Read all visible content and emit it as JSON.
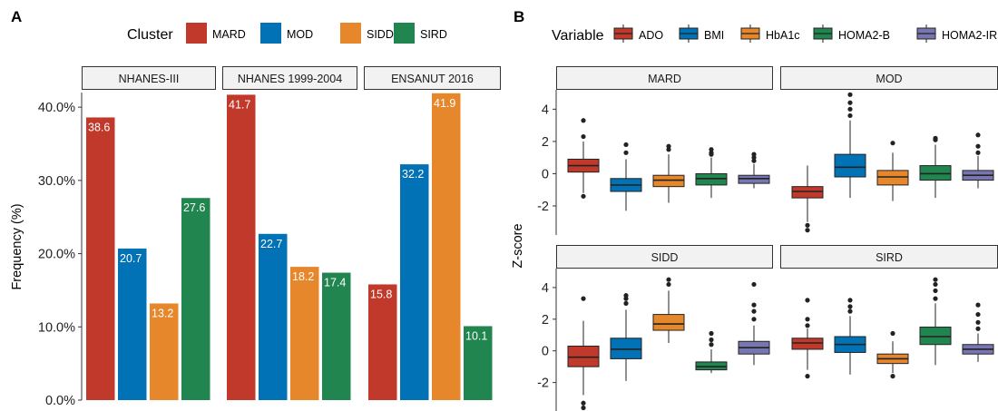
{
  "chart_data": [
    {
      "type": "bar",
      "panel_label": "A",
      "legend": {
        "title": "Cluster",
        "placement": "top"
      },
      "ylabel": "Frequency (%)",
      "ylim": [
        0,
        42
      ],
      "yticks": [
        0,
        10,
        20,
        30,
        40
      ],
      "yticklabels": [
        "0.0%",
        "10.0%",
        "20.0%",
        "30.0%",
        "40.0%"
      ],
      "categories": [
        "MARD",
        "MOD",
        "SIDD",
        "SIRD"
      ],
      "colors": {
        "MARD": "#C0392B",
        "MOD": "#0072B5",
        "SIDD": "#E7872B",
        "SIRD": "#20854E"
      },
      "facets": [
        {
          "title": "NHANES-III",
          "values": [
            38.6,
            20.7,
            13.2,
            27.6
          ],
          "labels": [
            "38.6",
            "20.7",
            "13.2",
            "27.6"
          ]
        },
        {
          "title": "NHANES 1999-2004",
          "values": [
            41.7,
            22.7,
            18.2,
            17.4
          ],
          "labels": [
            "41.7",
            "22.7",
            "18.2",
            "17.4"
          ]
        },
        {
          "title": "ENSANUT 2016",
          "values": [
            15.8,
            32.2,
            41.9,
            10.1
          ],
          "labels": [
            "15.8",
            "32.2",
            "41.9",
            "10.1"
          ]
        }
      ],
      "grid": false
    },
    {
      "type": "box",
      "panel_label": "B",
      "legend": {
        "title": "Variable",
        "placement": "top"
      },
      "ylabel": "Z-score",
      "ylim": [
        -3.8,
        5.2
      ],
      "yticks": [
        -2,
        0,
        2,
        4
      ],
      "yticklabels": [
        "-2",
        "0",
        "2",
        "4"
      ],
      "variables": [
        "ADO",
        "BMI",
        "HbA1c",
        "HOMA2-B",
        "HOMA2-IR"
      ],
      "colors": {
        "ADO": "#C0392B",
        "BMI": "#0072B5",
        "HbA1c": "#E7872B",
        "HOMA2-B": "#20854E",
        "HOMA2-IR": "#7876B1"
      },
      "facets": [
        {
          "title": "MARD",
          "boxes": [
            {
              "variable": "ADO",
              "q1": 0.1,
              "median": 0.5,
              "q3": 0.9,
              "whisker_low": -1.2,
              "whisker_high": 2.0,
              "outliers": [
                3.3,
                2.3,
                -1.4
              ]
            },
            {
              "variable": "BMI",
              "q1": -1.1,
              "median": -0.7,
              "q3": -0.3,
              "whisker_low": -2.3,
              "whisker_high": 0.9,
              "outliers": [
                1.8,
                1.3
              ]
            },
            {
              "variable": "HbA1c",
              "q1": -0.8,
              "median": -0.4,
              "q3": -0.1,
              "whisker_low": -1.8,
              "whisker_high": 1.2,
              "outliers": [
                1.7,
                1.5
              ]
            },
            {
              "variable": "HOMA2-B",
              "q1": -0.7,
              "median": -0.3,
              "q3": 0.0,
              "whisker_low": -1.5,
              "whisker_high": 1.0,
              "outliers": [
                1.5,
                1.3,
                1.2
              ]
            },
            {
              "variable": "HOMA2-IR",
              "q1": -0.6,
              "median": -0.3,
              "q3": -0.1,
              "whisker_low": -0.9,
              "whisker_high": 0.6,
              "outliers": [
                1.2,
                1.0,
                0.8
              ]
            }
          ]
        },
        {
          "title": "MOD",
          "boxes": [
            {
              "variable": "ADO",
              "q1": -1.5,
              "median": -1.1,
              "q3": -0.8,
              "whisker_low": -3.0,
              "whisker_high": 0.5,
              "outliers": [
                -3.2,
                -3.5
              ]
            },
            {
              "variable": "BMI",
              "q1": -0.2,
              "median": 0.4,
              "q3": 1.2,
              "whisker_low": -1.5,
              "whisker_high": 3.3,
              "outliers": [
                3.6,
                4.0,
                4.4,
                4.9
              ]
            },
            {
              "variable": "HbA1c",
              "q1": -0.7,
              "median": -0.2,
              "q3": 0.2,
              "whisker_low": -1.7,
              "whisker_high": 1.3,
              "outliers": [
                1.9
              ]
            },
            {
              "variable": "HOMA2-B",
              "q1": -0.4,
              "median": 0.0,
              "q3": 0.5,
              "whisker_low": -1.5,
              "whisker_high": 1.8,
              "outliers": [
                2.1,
                2.2
              ]
            },
            {
              "variable": "HOMA2-IR",
              "q1": -0.4,
              "median": -0.1,
              "q3": 0.2,
              "whisker_low": -0.9,
              "whisker_high": 1.1,
              "outliers": [
                1.3,
                1.7,
                2.4
              ]
            }
          ]
        },
        {
          "title": "SIDD",
          "boxes": [
            {
              "variable": "ADO",
              "q1": -1.0,
              "median": -0.4,
              "q3": 0.3,
              "whisker_low": -2.8,
              "whisker_high": 1.9,
              "outliers": [
                3.3,
                -3.3,
                -3.6
              ]
            },
            {
              "variable": "BMI",
              "q1": -0.5,
              "median": 0.1,
              "q3": 0.8,
              "whisker_low": -1.9,
              "whisker_high": 2.6,
              "outliers": [
                3.0,
                3.3,
                3.5
              ]
            },
            {
              "variable": "HbA1c",
              "q1": 1.3,
              "median": 1.7,
              "q3": 2.3,
              "whisker_low": 0.5,
              "whisker_high": 3.8,
              "outliers": [
                4.2,
                4.5
              ]
            },
            {
              "variable": "HOMA2-B",
              "q1": -1.2,
              "median": -1.0,
              "q3": -0.7,
              "whisker_low": -1.4,
              "whisker_high": 0.1,
              "outliers": [
                0.4,
                0.7,
                1.1
              ]
            },
            {
              "variable": "HOMA2-IR",
              "q1": -0.2,
              "median": 0.2,
              "q3": 0.6,
              "whisker_low": -0.9,
              "whisker_high": 1.6,
              "outliers": [
                2.0,
                2.5,
                2.9,
                4.2
              ]
            }
          ]
        },
        {
          "title": "SIRD",
          "boxes": [
            {
              "variable": "ADO",
              "q1": 0.1,
              "median": 0.5,
              "q3": 0.8,
              "whisker_low": -1.2,
              "whisker_high": 1.4,
              "outliers": [
                1.6,
                2.0,
                3.2,
                -1.6
              ]
            },
            {
              "variable": "BMI",
              "q1": -0.1,
              "median": 0.4,
              "q3": 0.9,
              "whisker_low": -1.5,
              "whisker_high": 2.2,
              "outliers": [
                2.5,
                2.8,
                3.2
              ]
            },
            {
              "variable": "HbA1c",
              "q1": -0.8,
              "median": -0.5,
              "q3": -0.2,
              "whisker_low": -1.4,
              "whisker_high": 0.6,
              "outliers": [
                1.1,
                -1.6
              ]
            },
            {
              "variable": "HOMA2-B",
              "q1": 0.4,
              "median": 0.9,
              "q3": 1.5,
              "whisker_low": -0.9,
              "whisker_high": 3.0,
              "outliers": [
                3.3,
                3.8,
                4.2,
                4.5
              ]
            },
            {
              "variable": "HOMA2-IR",
              "q1": -0.2,
              "median": 0.1,
              "q3": 0.4,
              "whisker_low": -0.7,
              "whisker_high": 1.1,
              "outliers": [
                1.4,
                1.8,
                2.3,
                2.9
              ]
            }
          ]
        }
      ],
      "grid": false
    }
  ]
}
